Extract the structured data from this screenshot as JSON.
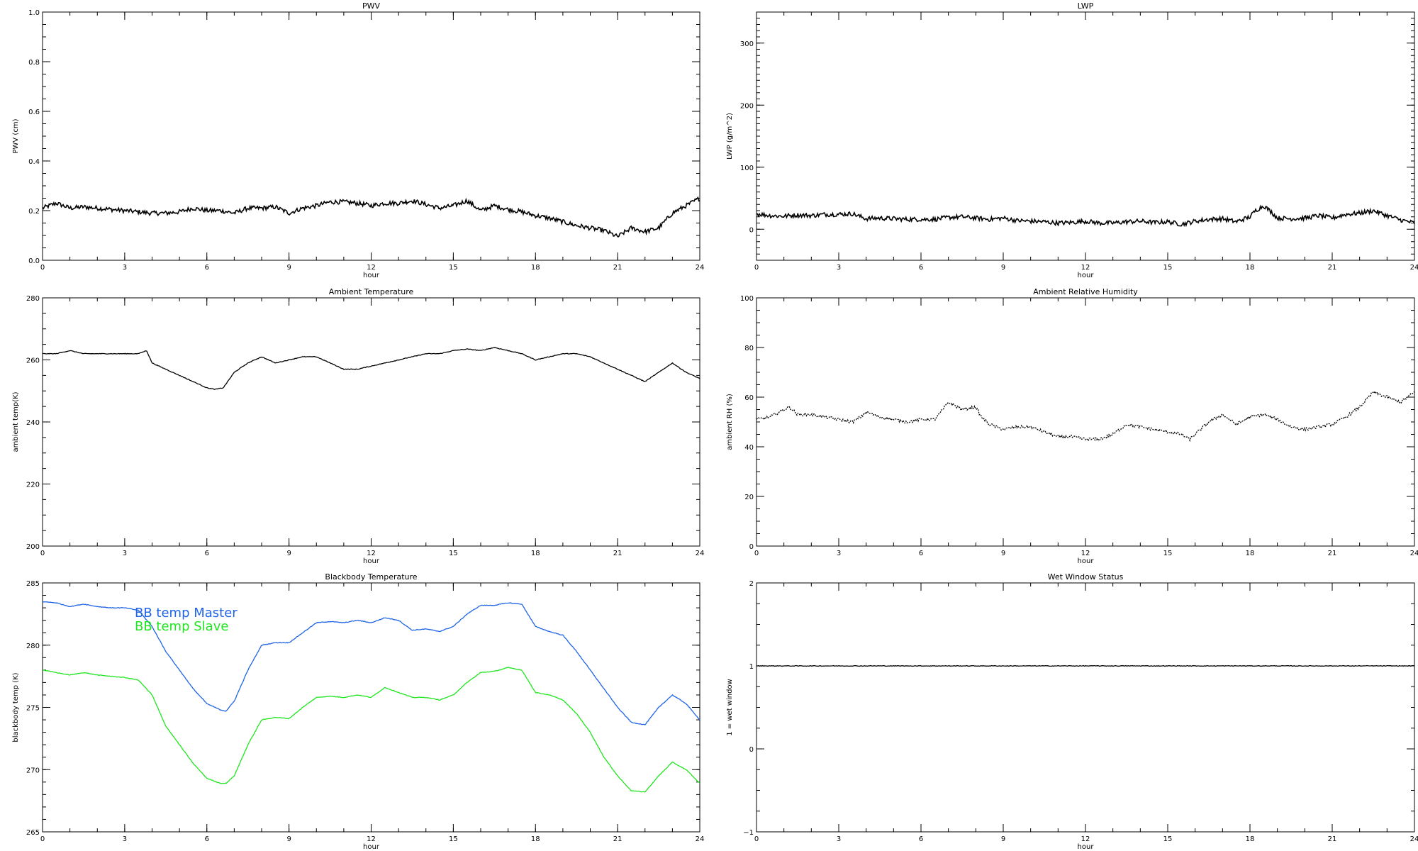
{
  "chart_data": [
    {
      "type": "line",
      "title": "PWV",
      "xlabel": "hour",
      "ylabel": "PWV (cm)",
      "xlim": [
        0,
        24
      ],
      "ylim": [
        0,
        1.0
      ],
      "xticks": [
        0,
        3,
        6,
        9,
        12,
        15,
        18,
        21,
        24
      ],
      "xminor": 1,
      "yticks": [
        0.0,
        0.2,
        0.4,
        0.6,
        0.8,
        1.0
      ],
      "ytick_labels": [
        "0.0",
        "0.2",
        "0.4",
        "0.6",
        "0.8",
        "1.0"
      ],
      "yminor": 0.05,
      "grid": false,
      "series": [
        {
          "color": "#000000",
          "style": "noisy",
          "x": [
            0,
            0.5,
            1,
            1.5,
            2,
            2.5,
            3,
            3.5,
            4,
            4.5,
            5,
            5.5,
            6,
            6.5,
            7,
            7.5,
            8,
            8.5,
            9,
            9.5,
            10,
            10.5,
            11,
            11.5,
            12,
            12.5,
            13,
            13.5,
            14,
            14.5,
            15,
            15.5,
            16,
            16.5,
            17,
            17.5,
            18,
            18.5,
            19,
            19.5,
            20,
            20.5,
            21,
            21.5,
            22,
            22.5,
            23,
            23.5,
            24
          ],
          "y": [
            0.21,
            0.23,
            0.21,
            0.215,
            0.21,
            0.205,
            0.2,
            0.195,
            0.19,
            0.19,
            0.195,
            0.21,
            0.2,
            0.2,
            0.19,
            0.21,
            0.21,
            0.215,
            0.19,
            0.21,
            0.22,
            0.235,
            0.235,
            0.23,
            0.22,
            0.23,
            0.23,
            0.24,
            0.225,
            0.21,
            0.22,
            0.24,
            0.2,
            0.22,
            0.205,
            0.195,
            0.18,
            0.17,
            0.155,
            0.14,
            0.13,
            0.12,
            0.095,
            0.13,
            0.115,
            0.13,
            0.19,
            0.22,
            0.25
          ]
        }
      ]
    },
    {
      "type": "line",
      "title": "LWP",
      "xlabel": "hour",
      "ylabel": "LWP (g/m^2)",
      "xlim": [
        0,
        24
      ],
      "ylim": [
        -50,
        350
      ],
      "xticks": [
        0,
        3,
        6,
        9,
        12,
        15,
        18,
        21,
        24
      ],
      "xminor": 1,
      "yticks": [
        0,
        100,
        200,
        300
      ],
      "ytick_labels": [
        "0",
        "100",
        "200",
        "300"
      ],
      "yminor": 10,
      "grid": false,
      "series": [
        {
          "color": "#000000",
          "style": "noisy",
          "x": [
            0,
            0.5,
            1,
            1.5,
            2,
            2.5,
            3,
            3.5,
            4,
            4.5,
            5,
            5.5,
            6,
            6.5,
            7,
            7.5,
            8,
            8.5,
            9,
            9.5,
            10,
            10.5,
            11,
            11.5,
            12,
            12.5,
            13,
            13.5,
            14,
            14.5,
            15,
            15.5,
            16,
            16.5,
            17,
            17.5,
            18,
            18.2,
            18.5,
            18.8,
            19,
            19.5,
            20,
            20.5,
            21,
            21.5,
            22,
            22.5,
            23,
            23.5,
            24
          ],
          "y": [
            25,
            22,
            21,
            23,
            22,
            24,
            24,
            25,
            17,
            18,
            17,
            16,
            16,
            16,
            19,
            20,
            18,
            16,
            18,
            14,
            13,
            12,
            10,
            11,
            13,
            10,
            10,
            12,
            13,
            11,
            12,
            8,
            13,
            16,
            17,
            12,
            20,
            30,
            38,
            27,
            18,
            17,
            18,
            22,
            18,
            24,
            26,
            30,
            22,
            15,
            10
          ]
        }
      ]
    },
    {
      "type": "line",
      "title": "Ambient Temperature",
      "xlabel": "hour",
      "ylabel": "ambient temp(K)",
      "xlim": [
        0,
        24
      ],
      "ylim": [
        200,
        280
      ],
      "xticks": [
        0,
        3,
        6,
        9,
        12,
        15,
        18,
        21,
        24
      ],
      "xminor": 1,
      "yticks": [
        200,
        220,
        240,
        260,
        280
      ],
      "ytick_labels": [
        "200",
        "220",
        "240",
        "260",
        "280"
      ],
      "yminor": 5,
      "grid": false,
      "series": [
        {
          "color": "#000000",
          "style": "smooth",
          "x": [
            0,
            0.5,
            1,
            1.5,
            2,
            2.5,
            3,
            3.5,
            3.8,
            4,
            4.5,
            5,
            5.5,
            6,
            6.3,
            6.6,
            7,
            7.5,
            8,
            8.5,
            9,
            9.5,
            10,
            10.5,
            11,
            11.5,
            12,
            12.5,
            13,
            13.5,
            14,
            14.5,
            15,
            15.5,
            16,
            16.5,
            17,
            17.5,
            18,
            18.5,
            19,
            19.5,
            20,
            20.5,
            21,
            21.5,
            22,
            22.5,
            23,
            23.5,
            24
          ],
          "y": [
            262,
            262,
            263,
            262,
            262,
            262,
            262,
            262,
            263,
            259,
            257,
            255,
            253,
            251,
            250.5,
            251,
            256,
            259,
            261,
            259,
            260,
            261,
            261,
            259,
            257,
            257,
            258,
            259,
            260,
            261,
            262,
            262,
            263,
            263.5,
            263,
            264,
            263,
            262,
            260,
            261,
            262,
            262,
            261,
            259,
            257,
            255,
            253,
            256,
            259,
            256,
            254
          ]
        }
      ]
    },
    {
      "type": "line",
      "title": "Ambient Relative Humidity",
      "xlabel": "hour",
      "ylabel": "ambient RH (%)",
      "xlim": [
        0,
        24
      ],
      "ylim": [
        0,
        100
      ],
      "xticks": [
        0,
        3,
        6,
        9,
        12,
        15,
        18,
        21,
        24
      ],
      "xminor": 1,
      "yticks": [
        0,
        20,
        40,
        60,
        80,
        100
      ],
      "ytick_labels": [
        "0",
        "20",
        "40",
        "60",
        "80",
        "100"
      ],
      "yminor": 5,
      "grid": false,
      "series": [
        {
          "color": "#000000",
          "style": "dotted",
          "x": [
            0,
            0.5,
            1,
            1.2,
            1.5,
            2,
            2.5,
            3,
            3.5,
            3.8,
            4,
            4.5,
            5,
            5.5,
            6,
            6.5,
            6.8,
            7,
            7.5,
            8,
            8.2,
            8.5,
            9,
            9.5,
            10,
            10.5,
            11,
            11.5,
            12,
            12.5,
            13,
            13.5,
            14,
            14.5,
            15,
            15.5,
            15.8,
            16,
            16.5,
            17,
            17.5,
            18,
            18.5,
            19,
            19.5,
            20,
            20.5,
            21,
            21.5,
            22,
            22.5,
            23,
            23.5,
            24
          ],
          "y": [
            51,
            52,
            55,
            56,
            53,
            53,
            52,
            51,
            50,
            52,
            54,
            52,
            51,
            50,
            51,
            51,
            55,
            58,
            55,
            56,
            52,
            49,
            47,
            48,
            48,
            46,
            44,
            44,
            43,
            43,
            45,
            49,
            48,
            47,
            46,
            45,
            43,
            45,
            50,
            53,
            49,
            52,
            53,
            51,
            48,
            47,
            48,
            49,
            52,
            56,
            62,
            60,
            58,
            62
          ]
        }
      ]
    },
    {
      "type": "line",
      "title": "Blackbody Temperature",
      "xlabel": "hour",
      "ylabel": "blackbody temp (K)",
      "xlim": [
        0,
        24
      ],
      "ylim": [
        265,
        285
      ],
      "xticks": [
        0,
        3,
        6,
        9,
        12,
        15,
        18,
        21,
        24
      ],
      "xminor": 1,
      "yticks": [
        265,
        270,
        275,
        280,
        285
      ],
      "ytick_labels": [
        "265",
        "270",
        "275",
        "280",
        "285"
      ],
      "yminor": 1,
      "grid": false,
      "legend_position": "top-left",
      "series": [
        {
          "name": "BB temp Master",
          "color": "#1e64e6",
          "style": "smooth",
          "x": [
            0,
            0.5,
            1,
            1.5,
            2,
            2.5,
            3,
            3.5,
            4,
            4.5,
            5,
            5.5,
            6,
            6.5,
            6.7,
            7,
            7.5,
            8,
            8.5,
            9,
            9.5,
            10,
            10.5,
            11,
            11.5,
            12,
            12.5,
            13,
            13.5,
            14,
            14.5,
            15,
            15.5,
            16,
            16.5,
            17,
            17.5,
            18,
            18.5,
            19,
            19.5,
            20,
            20.5,
            21,
            21.5,
            22,
            22.5,
            23,
            23.5,
            24
          ],
          "y": [
            283.5,
            283.4,
            283.1,
            283.3,
            283.1,
            283,
            283,
            282.8,
            281.5,
            279.5,
            278,
            276.5,
            275.3,
            274.8,
            274.7,
            275.5,
            278,
            280,
            280.2,
            280.2,
            281,
            281.8,
            281.9,
            281.8,
            282,
            281.8,
            282.2,
            282,
            281.2,
            281.3,
            281.1,
            281.5,
            282.5,
            283.2,
            283.2,
            283.4,
            283.3,
            281.5,
            281.1,
            280.8,
            279.5,
            278,
            276.5,
            275,
            273.8,
            273.6,
            275,
            276,
            275.3,
            274
          ]
        },
        {
          "name": "BB temp Slave",
          "color": "#1ee61e",
          "style": "smooth",
          "x": [
            0,
            0.5,
            1,
            1.5,
            2,
            2.5,
            3,
            3.5,
            4,
            4.5,
            5,
            5.5,
            6,
            6.5,
            6.7,
            7,
            7.5,
            8,
            8.5,
            9,
            9.5,
            10,
            10.5,
            11,
            11.5,
            12,
            12.5,
            13,
            13.5,
            14,
            14.5,
            15,
            15.5,
            16,
            16.5,
            17,
            17.5,
            18,
            18.5,
            19,
            19.5,
            20,
            20.5,
            21,
            21.5,
            22,
            22.5,
            23,
            23.5,
            24
          ],
          "y": [
            278,
            277.8,
            277.6,
            277.8,
            277.6,
            277.5,
            277.4,
            277.2,
            276,
            273.5,
            272,
            270.5,
            269.3,
            268.9,
            268.9,
            269.5,
            272,
            274,
            274.2,
            274.1,
            275,
            275.8,
            275.9,
            275.8,
            276,
            275.8,
            276.6,
            276.2,
            275.8,
            275.8,
            275.6,
            276,
            277,
            277.8,
            277.9,
            278.2,
            278,
            276.2,
            276,
            275.6,
            274.5,
            273,
            271,
            269.5,
            268.3,
            268.2,
            269.5,
            270.6,
            270,
            268.9
          ]
        }
      ]
    },
    {
      "type": "line",
      "title": "Wet Window Status",
      "xlabel": "hour",
      "ylabel": "1 = wet window",
      "xlim": [
        0,
        24
      ],
      "ylim": [
        -1,
        2
      ],
      "xticks": [
        0,
        3,
        6,
        9,
        12,
        15,
        18,
        21,
        24
      ],
      "xminor": 1,
      "yticks": [
        -1,
        0,
        1,
        2
      ],
      "ytick_labels": [
        "−1",
        "0",
        "1",
        "2"
      ],
      "yminor": 0.25,
      "grid": false,
      "series": [
        {
          "color": "#000000",
          "style": "smooth",
          "x": [
            0,
            24
          ],
          "y": [
            1,
            1
          ]
        }
      ]
    }
  ]
}
